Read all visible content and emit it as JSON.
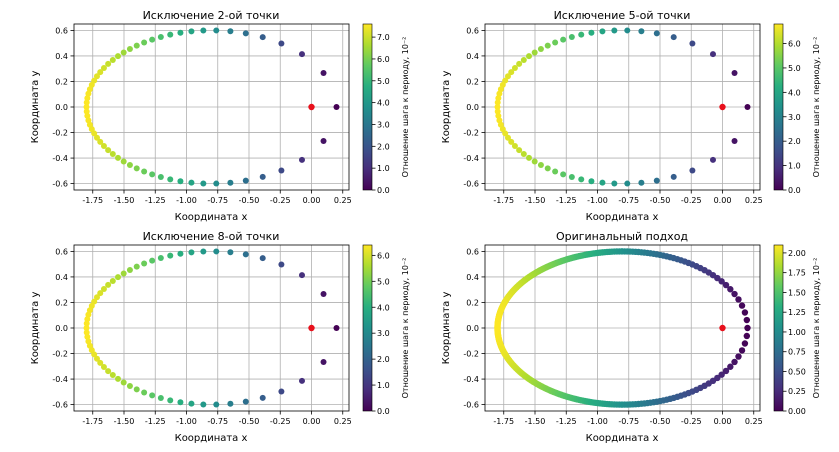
{
  "chart_data": [
    {
      "type": "scatter",
      "title": "Исключение 2-ой точки",
      "xlabel": "Координата x",
      "ylabel": "Координата y",
      "xlim": [
        -1.9,
        0.3
      ],
      "ylim": [
        -0.65,
        0.65
      ],
      "xticks": [
        "-1.75",
        "-1.50",
        "-1.25",
        "-1.00",
        "-0.75",
        "-0.50",
        "-0.25",
        "0.00",
        "0.25"
      ],
      "yticks": [
        "-0.6",
        "-0.4",
        "-0.2",
        "0.0",
        "0.2",
        "0.4",
        "0.6"
      ],
      "n_points": 60,
      "color_max": 7.6,
      "colorbar": {
        "label": "Отношение шага к периоду, 10⁻²",
        "ticks": [
          "0.0",
          "1.0",
          "2.0",
          "3.0",
          "4.0",
          "5.0",
          "6.0",
          "7.0"
        ]
      },
      "orbit": {
        "center_x": -0.8,
        "semi_axis_x": 1.0,
        "semi_axis_y": 0.6
      },
      "focus_point": {
        "x": 0.0,
        "y": 0.0,
        "color": "#e8101c"
      }
    },
    {
      "type": "scatter",
      "title": "Исключение 5-ой точки",
      "xlabel": "Координата x",
      "ylabel": "Координата y",
      "xlim": [
        -1.9,
        0.3
      ],
      "ylim": [
        -0.65,
        0.65
      ],
      "xticks": [
        "-1.75",
        "-1.50",
        "-1.25",
        "-1.00",
        "-0.75",
        "-0.50",
        "-0.25",
        "0.00",
        "0.25"
      ],
      "yticks": [
        "-0.6",
        "-0.4",
        "-0.2",
        "0.0",
        "0.2",
        "0.4",
        "0.6"
      ],
      "n_points": 60,
      "color_max": 6.8,
      "colorbar": {
        "label": "Отношение шага к периоду, 10⁻²",
        "ticks": [
          "0.0",
          "1.0",
          "2.0",
          "3.0",
          "4.0",
          "5.0",
          "6.0"
        ]
      },
      "orbit": {
        "center_x": -0.8,
        "semi_axis_x": 1.0,
        "semi_axis_y": 0.6
      },
      "focus_point": {
        "x": 0.0,
        "y": 0.0,
        "color": "#e8101c"
      }
    },
    {
      "type": "scatter",
      "title": "Исключение 8-ой точки",
      "xlabel": "Координата x",
      "ylabel": "Координата y",
      "xlim": [
        -1.9,
        0.3
      ],
      "ylim": [
        -0.65,
        0.65
      ],
      "xticks": [
        "-1.75",
        "-1.50",
        "-1.25",
        "-1.00",
        "-0.75",
        "-0.50",
        "-0.25",
        "0.00",
        "0.25"
      ],
      "yticks": [
        "-0.6",
        "-0.4",
        "-0.2",
        "0.0",
        "0.2",
        "0.4",
        "0.6"
      ],
      "n_points": 60,
      "color_max": 6.4,
      "colorbar": {
        "label": "Отношение шага к периоду, 10⁻²",
        "ticks": [
          "0.0",
          "1.0",
          "2.0",
          "3.0",
          "4.0",
          "5.0",
          "6.0"
        ]
      },
      "orbit": {
        "center_x": -0.8,
        "semi_axis_x": 1.0,
        "semi_axis_y": 0.6
      },
      "focus_point": {
        "x": 0.0,
        "y": 0.0,
        "color": "#e8101c"
      }
    },
    {
      "type": "scatter",
      "title": "Оригинальный подход",
      "xlabel": "Координата x",
      "ylabel": "Координата y",
      "xlim": [
        -1.9,
        0.3
      ],
      "ylim": [
        -0.65,
        0.65
      ],
      "xticks": [
        "-1.75",
        "-1.50",
        "-1.25",
        "-1.00",
        "-0.75",
        "-0.50",
        "-0.25",
        "0.00",
        "0.25"
      ],
      "yticks": [
        "-0.6",
        "-0.4",
        "-0.2",
        "0.0",
        "0.2",
        "0.4",
        "0.6"
      ],
      "n_points": 300,
      "color_max": 2.1,
      "colorbar": {
        "label": "Отношение шага к периоду, 10⁻²",
        "ticks": [
          "0.00",
          "0.25",
          "0.50",
          "0.75",
          "1.00",
          "1.25",
          "1.50",
          "1.75",
          "2.00"
        ]
      },
      "orbit": {
        "center_x": -0.8,
        "semi_axis_x": 1.0,
        "semi_axis_y": 0.6
      },
      "focus_point": {
        "x": 0.0,
        "y": 0.0,
        "color": "#e8101c"
      }
    }
  ]
}
